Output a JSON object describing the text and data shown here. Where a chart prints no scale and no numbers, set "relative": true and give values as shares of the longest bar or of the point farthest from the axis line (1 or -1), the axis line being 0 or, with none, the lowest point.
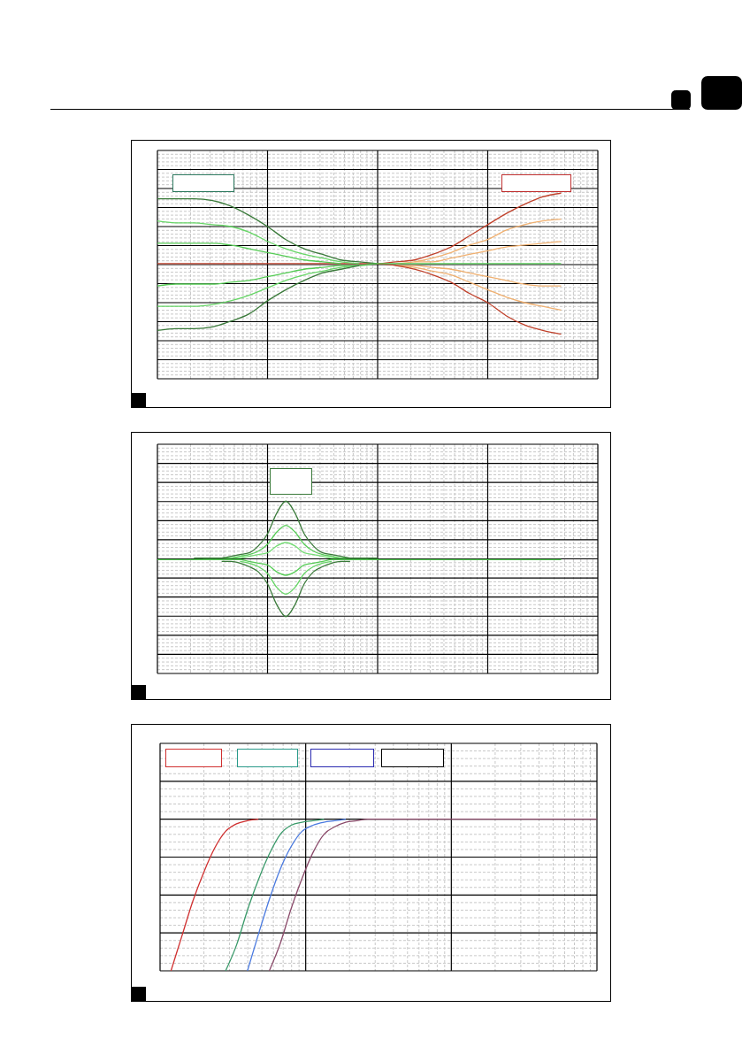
{
  "chart_data": [
    {
      "type": "line",
      "relative": true,
      "grid": true,
      "categories": [
        null,
        null,
        null,
        null,
        null,
        null,
        null,
        null,
        null,
        null,
        null,
        null,
        null,
        null,
        null,
        null,
        null,
        null,
        null,
        null,
        null,
        null,
        null,
        null,
        null
      ],
      "series": [
        {
          "color": "#c0402a",
          "values": [
            0.62,
            0.62,
            0.62,
            0.62,
            0.62,
            0.62,
            0.62,
            0.62,
            0.62,
            0.62,
            0.62,
            0.62,
            0.62,
            0.63,
            0.64,
            0.67,
            0.71,
            0.77,
            0.83,
            0.89,
            0.94,
            0.98,
            1.0,
            null,
            null
          ]
        },
        {
          "color": "#f0b070",
          "values": [
            null,
            null,
            null,
            null,
            null,
            null,
            null,
            null,
            null,
            null,
            null,
            null,
            null,
            0.62,
            0.63,
            0.65,
            0.68,
            0.72,
            0.75,
            0.8,
            0.83,
            0.85,
            0.86,
            null,
            null
          ]
        },
        {
          "color": "#f0b070",
          "values": [
            null,
            null,
            null,
            null,
            null,
            null,
            null,
            null,
            null,
            null,
            null,
            null,
            null,
            null,
            0.63,
            0.63,
            0.65,
            0.67,
            0.69,
            0.71,
            0.72,
            0.73,
            0.74,
            null,
            null
          ]
        },
        {
          "color": "#f0b070",
          "values": [
            null,
            null,
            null,
            null,
            null,
            null,
            null,
            null,
            null,
            null,
            null,
            null,
            null,
            0.61,
            0.61,
            0.6,
            0.59,
            0.57,
            0.55,
            0.53,
            0.51,
            0.5,
            0.5,
            null,
            null
          ]
        },
        {
          "color": "#f0b070",
          "values": [
            null,
            null,
            null,
            null,
            null,
            null,
            null,
            null,
            null,
            null,
            null,
            null,
            null,
            0.61,
            0.6,
            0.58,
            0.56,
            0.52,
            0.48,
            0.44,
            0.41,
            0.39,
            0.37,
            null,
            null
          ]
        },
        {
          "color": "#c0402a",
          "values": [
            null,
            null,
            null,
            null,
            null,
            null,
            null,
            null,
            null,
            null,
            null,
            null,
            0.62,
            0.61,
            0.59,
            0.56,
            0.52,
            0.46,
            0.41,
            0.34,
            0.29,
            0.26,
            0.24,
            null,
            null
          ]
        },
        {
          "color": "#3a7a3a",
          "values": [
            0.97,
            0.97,
            0.97,
            0.96,
            0.93,
            0.88,
            0.82,
            0.75,
            0.7,
            0.67,
            0.64,
            0.63,
            0.62,
            null,
            null,
            null,
            null,
            null,
            null,
            null,
            null,
            null,
            null,
            null,
            null
          ]
        },
        {
          "color": "#66d666",
          "values": [
            0.85,
            0.84,
            0.84,
            0.83,
            0.82,
            0.79,
            0.74,
            0.7,
            0.67,
            0.65,
            0.63,
            0.62,
            null,
            null,
            null,
            null,
            null,
            null,
            null,
            null,
            null,
            null,
            null,
            null,
            null
          ]
        },
        {
          "color": "#55cc55",
          "values": [
            0.73,
            0.73,
            0.73,
            0.73,
            0.72,
            0.7,
            0.68,
            0.66,
            0.64,
            0.63,
            0.62,
            null,
            null,
            null,
            null,
            null,
            null,
            null,
            null,
            null,
            null,
            null,
            null,
            null,
            null
          ]
        },
        {
          "color": "#55cc55",
          "values": [
            0.5,
            0.51,
            0.51,
            0.51,
            0.52,
            0.53,
            0.55,
            0.57,
            0.59,
            0.6,
            0.61,
            0.61,
            0.62,
            0.62,
            0.62,
            0.62,
            0.62,
            0.62,
            0.62,
            0.62,
            0.62,
            0.62,
            0.62,
            null,
            null
          ]
        },
        {
          "color": "#66d666",
          "values": [
            0.39,
            0.39,
            0.39,
            0.4,
            0.42,
            0.45,
            0.49,
            0.53,
            0.56,
            0.58,
            0.6,
            0.61,
            null,
            null,
            null,
            null,
            null,
            null,
            null,
            null,
            null,
            null,
            null,
            null,
            null
          ]
        },
        {
          "color": "#3a7a3a",
          "values": [
            0.26,
            0.27,
            0.27,
            0.28,
            0.31,
            0.35,
            0.42,
            0.48,
            0.53,
            0.57,
            0.59,
            0.61,
            null,
            null,
            null,
            null,
            null,
            null,
            null,
            null,
            null,
            null,
            null,
            null,
            null
          ]
        }
      ]
    },
    {
      "type": "line",
      "relative": true,
      "grid": true,
      "categories": [
        null,
        null,
        null,
        null,
        null,
        null,
        null,
        null,
        null,
        null,
        null,
        null,
        null,
        null,
        null,
        null,
        null,
        null,
        null,
        null,
        null,
        null,
        null,
        null,
        null,
        null,
        null,
        null,
        null,
        null,
        null,
        null,
        null,
        null,
        null,
        null,
        null,
        null,
        null,
        null,
        null,
        null,
        null,
        null,
        null,
        null,
        null,
        null,
        null
      ],
      "series": [
        {
          "color": "#77dd77",
          "values": [
            null,
            null,
            null,
            null,
            null,
            0.67,
            0.67,
            0.67,
            0.67,
            0.67,
            0.68,
            0.69,
            0.7,
            0.74,
            0.76,
            0.74,
            0.7,
            0.69,
            0.68,
            0.67,
            0.67,
            0.67,
            0.67,
            0.67,
            null,
            null,
            null,
            null,
            null,
            null,
            null,
            null,
            null,
            null,
            null,
            null,
            null,
            null,
            null,
            null,
            null,
            null,
            null,
            null,
            null,
            null,
            null,
            null,
            null
          ]
        },
        {
          "color": "#55cc55",
          "values": [
            0.66,
            0.66,
            0.66,
            0.66,
            0.66,
            0.66,
            0.66,
            0.66,
            0.66,
            0.66,
            0.65,
            0.64,
            0.63,
            0.59,
            0.57,
            0.59,
            0.63,
            0.64,
            0.65,
            0.66,
            0.66,
            0.66,
            0.66,
            0.66,
            0.66,
            0.66,
            0.66,
            0.66,
            0.66,
            0.66,
            0.66,
            0.66,
            0.66,
            0.66,
            0.66,
            0.66,
            0.66,
            0.66,
            0.66,
            0.66,
            0.66,
            0.66,
            0.66,
            0.66,
            0.66,
            null,
            null,
            null,
            null
          ]
        },
        {
          "color": "#55cc55",
          "values": [
            null,
            null,
            null,
            null,
            0.67,
            0.67,
            0.67,
            0.67,
            0.67,
            0.68,
            0.69,
            0.71,
            0.75,
            0.82,
            0.86,
            0.82,
            0.75,
            0.71,
            0.69,
            0.68,
            0.67,
            0.67,
            0.67,
            0.67,
            0.67,
            null,
            null,
            null,
            null,
            null,
            null,
            null,
            null,
            null,
            null,
            null,
            null,
            null,
            null,
            null,
            null,
            null,
            null,
            null,
            null,
            null,
            null,
            null,
            null
          ]
        },
        {
          "color": "#66d666",
          "values": [
            null,
            null,
            null,
            null,
            null,
            null,
            null,
            null,
            null,
            0.65,
            0.64,
            0.62,
            0.58,
            0.5,
            0.46,
            0.5,
            0.58,
            0.62,
            0.64,
            0.65,
            null,
            null,
            null,
            null,
            null,
            null,
            null,
            null,
            null,
            null,
            null,
            null,
            null,
            null,
            null,
            null,
            null,
            null,
            null,
            null,
            null,
            null,
            null,
            null,
            null,
            null,
            null,
            null,
            null
          ]
        },
        {
          "color": "#3a7a3a",
          "values": [
            null,
            null,
            null,
            null,
            0.67,
            0.67,
            0.67,
            0.67,
            0.68,
            0.69,
            0.7,
            0.74,
            0.81,
            0.93,
            1.0,
            0.93,
            0.81,
            0.74,
            0.7,
            0.69,
            0.68,
            0.67,
            0.67,
            0.67,
            0.67,
            null,
            null,
            null,
            null,
            null,
            null,
            null,
            null,
            null,
            null,
            null,
            null,
            null,
            null,
            null,
            null,
            null,
            null,
            null,
            null,
            null,
            null,
            null,
            null
          ]
        },
        {
          "color": "#3a7a3a",
          "values": [
            null,
            null,
            null,
            null,
            null,
            null,
            null,
            0.65,
            0.65,
            0.64,
            0.62,
            0.59,
            0.52,
            0.4,
            0.33,
            0.4,
            0.52,
            0.59,
            0.62,
            0.64,
            0.65,
            0.65,
            null,
            null,
            null,
            null,
            null,
            null,
            null,
            null,
            null,
            null,
            null,
            null,
            null,
            null,
            null,
            null,
            null,
            null,
            null,
            null,
            null,
            null,
            null,
            null,
            null,
            null,
            null
          ]
        }
      ]
    },
    {
      "type": "line",
      "relative": true,
      "grid": true,
      "categories": [
        null,
        null,
        null,
        null,
        null,
        null,
        null,
        null,
        null,
        null,
        null,
        null,
        null,
        null,
        null,
        null,
        null,
        null,
        null,
        null,
        null,
        null,
        null,
        null,
        null,
        null,
        null,
        null,
        null,
        null,
        null,
        null,
        null,
        null,
        null,
        null,
        null,
        null,
        null,
        null,
        null
      ],
      "series": [
        {
          "color": "#d03030",
          "values": [
            null,
            0,
            0.23,
            0.46,
            0.65,
            0.81,
            0.92,
            0.97,
            0.99,
            1.0,
            null,
            null,
            null,
            null,
            null,
            null,
            null,
            null,
            null,
            null,
            null,
            null,
            null,
            null,
            null,
            null,
            null,
            null,
            null,
            null,
            null,
            null,
            null,
            null,
            null,
            null,
            null,
            null,
            null,
            null,
            null
          ]
        },
        {
          "color": "#3a9a6a",
          "values": [
            null,
            null,
            null,
            null,
            null,
            null,
            0,
            0.17,
            0.4,
            0.6,
            0.77,
            0.9,
            0.96,
            0.98,
            0.99,
            1.0,
            null,
            null,
            null,
            null,
            null,
            null,
            null,
            null,
            null,
            null,
            null,
            null,
            null,
            null,
            null,
            null,
            null,
            null,
            null,
            null,
            null,
            null,
            null,
            null,
            null
          ]
        },
        {
          "color": "#4a7ae0",
          "values": [
            null,
            null,
            null,
            null,
            null,
            null,
            null,
            null,
            0,
            0.24,
            0.47,
            0.67,
            0.82,
            0.92,
            0.96,
            0.98,
            0.99,
            1.0,
            null,
            null,
            null,
            null,
            null,
            null,
            null,
            null,
            null,
            null,
            null,
            null,
            null,
            null,
            null,
            null,
            null,
            null,
            null,
            null,
            null,
            null,
            null
          ]
        },
        {
          "color": "#8a4a6a",
          "values": [
            null,
            null,
            null,
            null,
            null,
            null,
            null,
            null,
            null,
            null,
            0,
            0.18,
            0.41,
            0.61,
            0.78,
            0.9,
            0.95,
            0.98,
            0.99,
            1.0,
            1.0,
            1.0,
            1.0,
            1.0,
            1.0,
            1.0,
            1.0,
            1.0,
            1.0,
            1.0,
            1.0,
            1.0,
            1.0,
            1.0,
            1.0,
            1.0,
            1.0,
            1.0,
            1.0,
            1.0,
            1.0
          ]
        }
      ]
    }
  ]
}
